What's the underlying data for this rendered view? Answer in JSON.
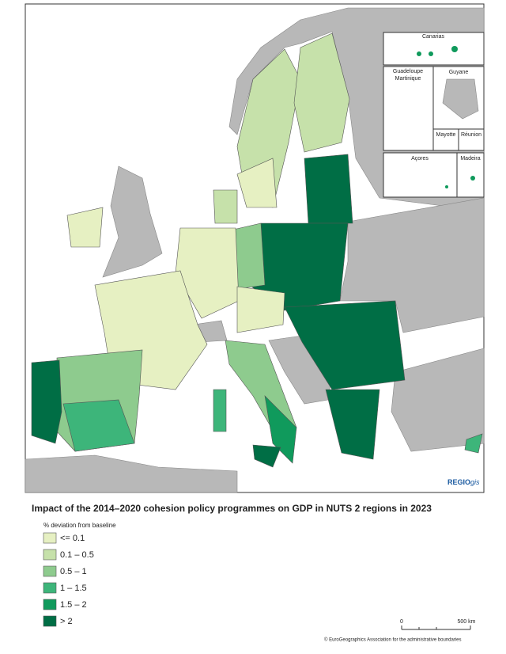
{
  "map": {
    "insets": [
      "Canarias",
      "Guadeloupe",
      "Martinique",
      "Guyane",
      "Mayotte",
      "Réunion",
      "Açores",
      "Madeira"
    ],
    "logo": {
      "main": "REGIO",
      "suffix": "gis"
    },
    "title": "Impact of the 2014–2020 cohesion policy programmes on GDP in NUTS 2 regions in 2023",
    "legend": {
      "title": "% deviation from baseline",
      "items": [
        {
          "label": "<= 0.1",
          "color": "#e6f0c2"
        },
        {
          "label": "0.1 – 0.5",
          "color": "#c6e1aa"
        },
        {
          "label": "0.5 – 1",
          "color": "#8ecb8e"
        },
        {
          "label": "1 – 1.5",
          "color": "#3db57a"
        },
        {
          "label": "1.5 – 2",
          "color": "#109a5c"
        },
        {
          "label": "> 2",
          "color": "#006e45"
        }
      ]
    },
    "scale": {
      "start": "0",
      "end": "500 km"
    },
    "copyright": "© EuroGeographics Association for the administrative boundaries"
  }
}
